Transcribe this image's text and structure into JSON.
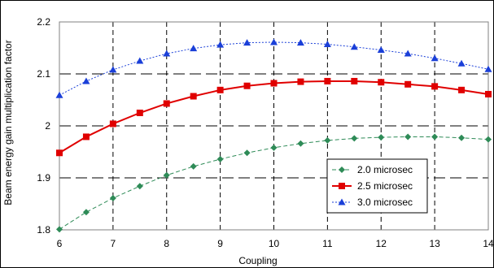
{
  "chart_data": {
    "type": "line",
    "xlabel": "Coupling",
    "ylabel": "Beam energy gain multiplication factor",
    "xlim": [
      6,
      14
    ],
    "ylim": [
      1.8,
      2.2
    ],
    "x_ticks": [
      "6",
      "7",
      "8",
      "9",
      "10",
      "11",
      "12",
      "13",
      "14"
    ],
    "y_ticks": [
      "1.8",
      "1.9",
      "2",
      "2.1",
      "2.2"
    ],
    "grid": true,
    "legend_position": "bottom-right",
    "series": [
      {
        "name": "2.0 microsec",
        "color": "#2e8b57",
        "marker": "diamond",
        "line_style": "dashed",
        "x": [
          6,
          6.5,
          7,
          7.5,
          8,
          8.5,
          9,
          9.5,
          10,
          10.5,
          11,
          11.5,
          12,
          12.5,
          13,
          13.5,
          14
        ],
        "values": [
          1.801,
          1.834,
          1.861,
          1.884,
          1.905,
          1.922,
          1.936,
          1.948,
          1.958,
          1.966,
          1.972,
          1.976,
          1.978,
          1.979,
          1.979,
          1.977,
          1.974
        ]
      },
      {
        "name": "2.5 microsec",
        "color": "#e00000",
        "marker": "square",
        "line_style": "solid",
        "x": [
          6,
          6.5,
          7,
          7.5,
          8,
          8.5,
          9,
          9.5,
          10,
          10.5,
          11,
          11.5,
          12,
          12.5,
          13,
          13.5,
          14
        ],
        "values": [
          1.948,
          1.979,
          2.004,
          2.025,
          2.043,
          2.057,
          2.069,
          2.077,
          2.082,
          2.085,
          2.086,
          2.086,
          2.084,
          2.08,
          2.076,
          2.069,
          2.061
        ]
      },
      {
        "name": "3.0 microsec",
        "color": "#1a3fd8",
        "marker": "triangle",
        "line_style": "dotted",
        "x": [
          6,
          6.5,
          7,
          7.5,
          8,
          8.5,
          9,
          9.5,
          10,
          10.5,
          11,
          11.5,
          12,
          12.5,
          13,
          13.5,
          14
        ],
        "values": [
          2.059,
          2.086,
          2.108,
          2.125,
          2.139,
          2.149,
          2.156,
          2.16,
          2.161,
          2.16,
          2.157,
          2.152,
          2.146,
          2.139,
          2.13,
          2.12,
          2.109
        ]
      }
    ]
  }
}
